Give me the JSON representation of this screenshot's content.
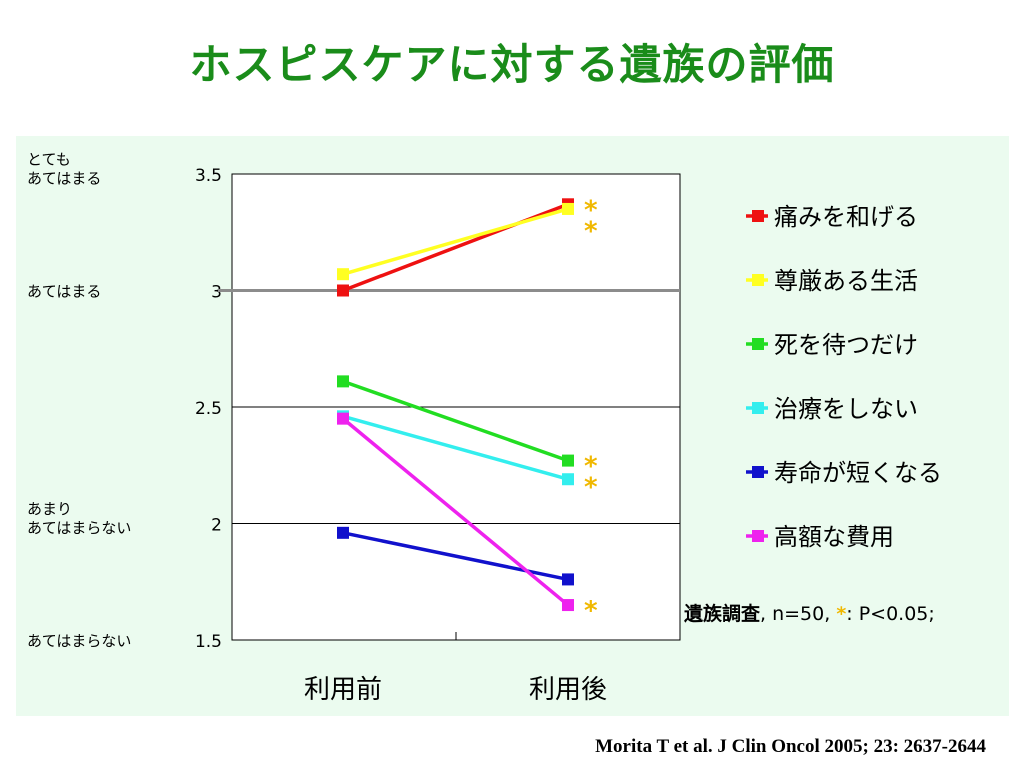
{
  "title": "ホスピスケアに対する遺族の評価",
  "citation": "Morita T et al.  J Clin Oncol 2005; 23: 2637-2644",
  "note": {
    "prefix": "遺族調査",
    "n": ", n=50, ",
    "star": "*",
    "suffix": ": P<0.05;"
  },
  "colors": {
    "title": "#1a8c1a",
    "panel": "#ebfbef",
    "star": "#f0b800",
    "refline": "#8c8c8c"
  },
  "chart_data": {
    "type": "line",
    "categories": [
      "利用前",
      "利用後"
    ],
    "ylim": [
      1.5,
      3.5
    ],
    "yticks": [
      "1.5",
      "2",
      "2.5",
      "3",
      "3.5"
    ],
    "ytick_values": [
      1.5,
      2,
      2.5,
      3,
      3.5
    ],
    "reference_line": 3,
    "scale_labels": [
      {
        "value": 3.5,
        "lines": [
          "とても",
          "あてはまる"
        ]
      },
      {
        "value": 3,
        "lines": [
          "あてはまる"
        ]
      },
      {
        "value": 2,
        "lines": [
          "あまり",
          "あてはまらない"
        ]
      },
      {
        "value": 1.5,
        "lines": [
          "あてはまらない"
        ]
      }
    ],
    "legend_position": "right",
    "significance_marker": "*",
    "series": [
      {
        "name": "痛みを和げる",
        "color": "#ee1111",
        "values": [
          3.0,
          3.37
        ],
        "significant": true
      },
      {
        "name": "尊厳ある生活",
        "color": "#ffff22",
        "values": [
          3.07,
          3.35
        ],
        "significant": true
      },
      {
        "name": "死を待つだけ",
        "color": "#22dd22",
        "values": [
          2.61,
          2.27
        ],
        "significant": true
      },
      {
        "name": "治療をしない",
        "color": "#33eeee",
        "values": [
          2.46,
          2.19
        ],
        "significant": true
      },
      {
        "name": "寿命が短くなる",
        "color": "#1111cc",
        "values": [
          1.96,
          1.76
        ],
        "significant": false
      },
      {
        "name": "高額な費用",
        "color": "#ee22ee",
        "values": [
          2.45,
          1.65
        ],
        "significant": true
      }
    ]
  }
}
